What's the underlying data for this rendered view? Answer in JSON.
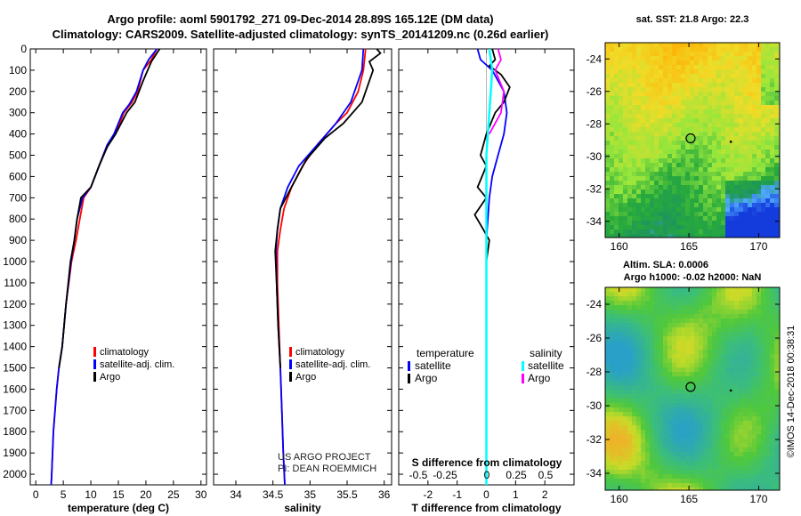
{
  "title": {
    "line1": "Argo profile: aoml 5901792_271 09-Dec-2014 28.89S 165.12E (DM data)",
    "line2": "Climatology: CARS2009. Satellite-adjusted climatology: synTS_20141209.nc (0.26d earlier)"
  },
  "colors": {
    "climatology": "#ff0000",
    "satellite": "#0000ff",
    "argo": "#000000",
    "sat_salinity": "#00ffff",
    "argo_salinity": "#ff00ff"
  },
  "chart_data": [
    {
      "type": "line",
      "id": "temperature",
      "xlabel": "temperature (deg C)",
      "ylabel": "",
      "xlim": [
        -1,
        31
      ],
      "ylim": [
        2050,
        0
      ],
      "xticks": [
        0,
        5,
        10,
        15,
        20,
        25,
        30
      ],
      "yticks": [
        0,
        100,
        200,
        300,
        400,
        500,
        600,
        700,
        800,
        900,
        1000,
        1100,
        1200,
        1300,
        1400,
        1500,
        1600,
        1700,
        1800,
        1900,
        2000
      ],
      "legend": [
        "climatology",
        "satellite-adj. clim.",
        "Argo"
      ],
      "series": [
        {
          "name": "climatology",
          "points": [
            [
              22,
              0
            ],
            [
              21,
              50
            ],
            [
              19.5,
              100
            ],
            [
              18.5,
              200
            ],
            [
              17.5,
              250
            ],
            [
              16,
              300
            ],
            [
              14.5,
              400
            ],
            [
              13,
              450
            ],
            [
              11.5,
              550
            ],
            [
              10,
              650
            ],
            [
              8.7,
              700
            ],
            [
              8,
              800
            ],
            [
              7.3,
              900
            ],
            [
              6.5,
              1000
            ],
            [
              5.5,
              1200
            ],
            [
              4.8,
              1400
            ],
            [
              4.2,
              1500
            ],
            [
              3.8,
              1600
            ],
            [
              3.2,
              1800
            ],
            [
              2.9,
              2000
            ],
            [
              2.8,
              2050
            ]
          ]
        },
        {
          "name": "satellite-adj. clim.",
          "points": [
            [
              22,
              0
            ],
            [
              20.5,
              50
            ],
            [
              19.5,
              100
            ],
            [
              18.3,
              200
            ],
            [
              17,
              260
            ],
            [
              15.8,
              300
            ],
            [
              14.2,
              400
            ],
            [
              13,
              450
            ],
            [
              11.5,
              550
            ],
            [
              10,
              650
            ],
            [
              8.5,
              700
            ],
            [
              7.5,
              800
            ],
            [
              7,
              900
            ],
            [
              6.4,
              1000
            ],
            [
              5.5,
              1200
            ],
            [
              4.8,
              1400
            ],
            [
              4.2,
              1500
            ],
            [
              3.8,
              1600
            ],
            [
              3.2,
              1800
            ],
            [
              2.9,
              2000
            ],
            [
              2.8,
              2050
            ]
          ]
        },
        {
          "name": "Argo",
          "points": [
            [
              22.5,
              0
            ],
            [
              21,
              60
            ],
            [
              19.5,
              150
            ],
            [
              18,
              250
            ],
            [
              16.5,
              300
            ],
            [
              15.5,
              350
            ],
            [
              14.5,
              400
            ],
            [
              13,
              460
            ],
            [
              11.5,
              550
            ],
            [
              10,
              650
            ],
            [
              8.2,
              700
            ],
            [
              7.5,
              800
            ],
            [
              7,
              900
            ],
            [
              6.3,
              1000
            ],
            [
              5.5,
              1200
            ],
            [
              4.8,
              1400
            ],
            [
              4.2,
              1500
            ]
          ]
        }
      ]
    },
    {
      "type": "line",
      "id": "salinity",
      "xlabel": "salinity",
      "ylabel": "",
      "xlim": [
        33.7,
        36.1
      ],
      "ylim": [
        2050,
        0
      ],
      "xticks": [
        34,
        34.5,
        35,
        35.5,
        36
      ],
      "legend": [
        "climatology",
        "satellite-adj. clim.",
        "Argo"
      ],
      "series": [
        {
          "name": "climatology",
          "points": [
            [
              35.75,
              0
            ],
            [
              35.72,
              100
            ],
            [
              35.65,
              200
            ],
            [
              35.5,
              300
            ],
            [
              35.35,
              350
            ],
            [
              35.1,
              450
            ],
            [
              34.9,
              550
            ],
            [
              34.75,
              650
            ],
            [
              34.65,
              750
            ],
            [
              34.6,
              850
            ],
            [
              34.56,
              950
            ],
            [
              34.56,
              1100
            ],
            [
              34.58,
              1300
            ],
            [
              34.6,
              1500
            ],
            [
              34.62,
              1700
            ],
            [
              34.64,
              1900
            ],
            [
              34.66,
              2050
            ]
          ]
        },
        {
          "name": "satellite-adj. clim.",
          "points": [
            [
              35.72,
              0
            ],
            [
              35.7,
              100
            ],
            [
              35.55,
              250
            ],
            [
              35.35,
              350
            ],
            [
              35.1,
              450
            ],
            [
              34.85,
              550
            ],
            [
              34.7,
              650
            ],
            [
              34.6,
              750
            ],
            [
              34.56,
              850
            ],
            [
              34.54,
              950
            ],
            [
              34.55,
              1100
            ],
            [
              34.57,
              1300
            ],
            [
              34.6,
              1500
            ],
            [
              34.62,
              1700
            ],
            [
              34.64,
              1900
            ],
            [
              34.66,
              2050
            ]
          ]
        },
        {
          "name": "Argo",
          "points": [
            [
              35.9,
              0
            ],
            [
              35.95,
              20
            ],
            [
              35.8,
              60
            ],
            [
              35.85,
              100
            ],
            [
              35.7,
              250
            ],
            [
              35.45,
              350
            ],
            [
              35.2,
              420
            ],
            [
              34.95,
              520
            ],
            [
              34.75,
              650
            ],
            [
              34.6,
              750
            ],
            [
              34.56,
              850
            ],
            [
              34.53,
              950
            ],
            [
              34.55,
              1100
            ],
            [
              34.57,
              1300
            ],
            [
              34.6,
              1500
            ]
          ]
        }
      ],
      "annotations": [
        "US ARGO PROJECT",
        "PI: DEAN ROEMMICH"
      ]
    },
    {
      "type": "line",
      "id": "difference",
      "xlabel": "T difference from climatology",
      "xlim": [
        -3,
        3
      ],
      "ylim": [
        2050,
        0
      ],
      "xticks": [
        -2,
        -1,
        0,
        1,
        2
      ],
      "secondary_xlabel": "S difference from climatology",
      "secondary_xticks": [
        "-0.5",
        "-0.25",
        "0",
        "0.25",
        "0.5"
      ],
      "legend_left": {
        "heading": "temperature",
        "items": [
          "satellite",
          "Argo"
        ]
      },
      "legend_right": {
        "heading": "salinity",
        "items": [
          "satellite",
          "Argo"
        ]
      },
      "series": [
        {
          "name": "T satellite",
          "points": [
            [
              -0.3,
              0
            ],
            [
              -0.2,
              50
            ],
            [
              0.2,
              100
            ],
            [
              0.6,
              200
            ],
            [
              0.7,
              300
            ],
            [
              0.6,
              400
            ],
            [
              0.4,
              500
            ],
            [
              0.2,
              600
            ],
            [
              0.1,
              700
            ],
            [
              0.0,
              900
            ],
            [
              0.0,
              1100
            ],
            [
              0.0,
              1500
            ]
          ]
        },
        {
          "name": "T Argo",
          "points": [
            [
              0.2,
              0
            ],
            [
              0.3,
              50
            ],
            [
              0.1,
              80
            ],
            [
              0.5,
              120
            ],
            [
              0.8,
              180
            ],
            [
              0.6,
              250
            ],
            [
              0.3,
              300
            ],
            [
              0.0,
              400
            ],
            [
              -0.1,
              450
            ],
            [
              -0.2,
              500
            ],
            [
              0.0,
              550
            ],
            [
              -0.3,
              650
            ],
            [
              0.0,
              700
            ],
            [
              -0.4,
              780
            ],
            [
              -0.1,
              850
            ],
            [
              0.1,
              900
            ],
            [
              0.0,
              1000
            ],
            [
              0.0,
              1500
            ]
          ]
        },
        {
          "name": "S satellite",
          "points": [
            [
              0.1,
              0
            ],
            [
              0.2,
              100
            ],
            [
              0.1,
              300
            ],
            [
              0.0,
              500
            ],
            [
              0.0,
              1000
            ],
            [
              0.0,
              2050
            ]
          ]
        },
        {
          "name": "S Argo",
          "points": [
            [
              0.4,
              0
            ],
            [
              0.5,
              50
            ],
            [
              0.3,
              100
            ],
            [
              0.6,
              200
            ],
            [
              0.5,
              300
            ],
            [
              0.1,
              400
            ]
          ]
        }
      ]
    },
    {
      "type": "heatmap",
      "id": "sst_map",
      "title": "sat. SST: 21.8 Argo: 22.3",
      "xticks": [
        160,
        165,
        170
      ],
      "yticks": [
        -24,
        -26,
        -28,
        -30,
        -32,
        -34
      ],
      "xlim": [
        159,
        171.5
      ],
      "ylim": [
        -35,
        -23
      ]
    },
    {
      "type": "heatmap",
      "id": "sla_map",
      "title": "Altim. SLA: 0.0006",
      "subtitle": "Argo h1000: -0.02 h2000: NaN",
      "xticks": [
        160,
        165,
        170
      ],
      "yticks": [
        -24,
        -26,
        -28,
        -30,
        -32,
        -34
      ],
      "xlim": [
        159,
        171.5
      ],
      "ylim": [
        -35,
        -23
      ]
    }
  ],
  "credit": "©IMOS 14-Dec-2018 00:38:31"
}
